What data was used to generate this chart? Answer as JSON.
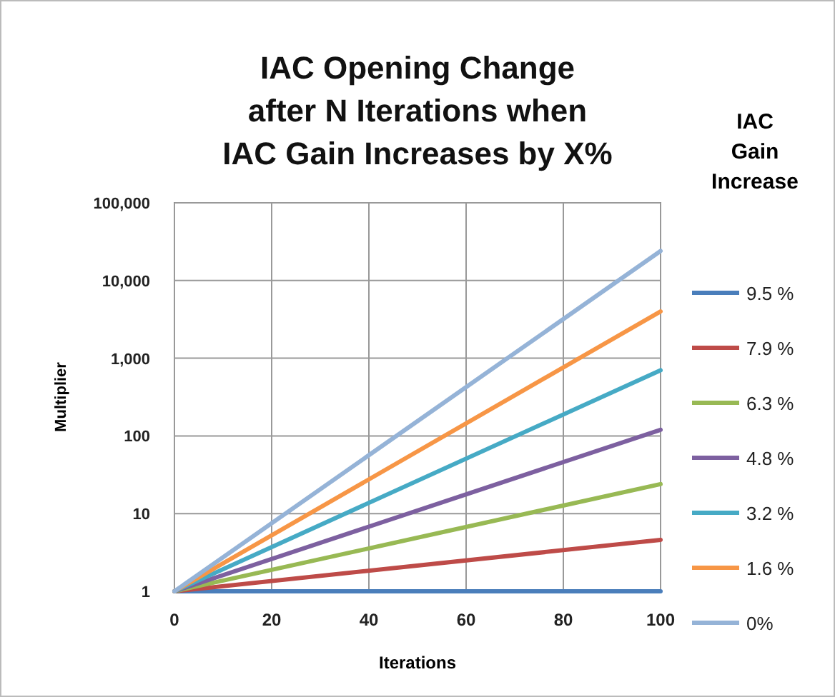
{
  "chart_data": {
    "type": "line",
    "title": "IAC Opening Change\nafter N Iterations when\nIAC Gain Increases by X%",
    "xlabel": "Iterations",
    "ylabel": "Multiplier",
    "legend_title": "IAC\nGain\nIncrease",
    "log": "y",
    "grid": true,
    "legend": "right",
    "marker": "none",
    "line_style": "solid",
    "xlim": [
      0,
      100
    ],
    "xticks": [
      0,
      20,
      40,
      60,
      80,
      100
    ],
    "ylim": [
      1,
      100000
    ],
    "yticks": [
      1,
      10,
      {
        "value": 100,
        "label": "100"
      },
      {
        "value": 1000,
        "label": "1,000"
      },
      {
        "value": 10000,
        "label": "10,000"
      },
      {
        "value": 100000,
        "label": "100,000"
      }
    ],
    "x": [
      0,
      100
    ],
    "series": [
      {
        "name": "9.5 %",
        "color": "#4a7ebb",
        "values": [
          1,
          1
        ]
      },
      {
        "name": "7.9 %",
        "color": "#be4b48",
        "values": [
          1,
          4.6
        ]
      },
      {
        "name": "6.3 %",
        "color": "#98b954",
        "values": [
          1,
          24
        ]
      },
      {
        "name": "4.8 %",
        "color": "#7d60a0",
        "values": [
          1,
          120
        ]
      },
      {
        "name": "3.2 %",
        "color": "#46aac5",
        "values": [
          1,
          700
        ]
      },
      {
        "name": "1.6 %",
        "color": "#f79646",
        "values": [
          1,
          4000
        ]
      },
      {
        "name": "0%",
        "color": "#95b3d7",
        "values": [
          1,
          24000
        ]
      }
    ]
  }
}
